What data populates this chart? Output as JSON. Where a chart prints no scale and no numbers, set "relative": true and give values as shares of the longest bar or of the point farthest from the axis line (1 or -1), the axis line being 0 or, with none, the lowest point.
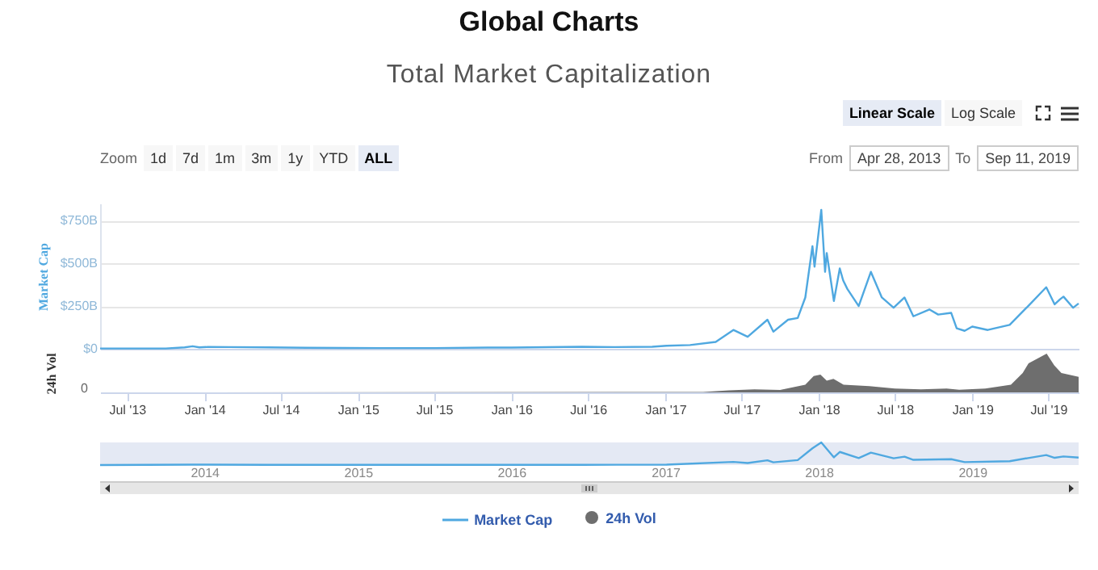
{
  "chart_data": [
    {
      "type": "line",
      "title": "Global Charts",
      "subtitle": "Total Market Capitalization",
      "ylabel": "Market Cap",
      "legend": "bottom",
      "grid": "y",
      "tick_labels": "y",
      "annotations": [
        "Zoom",
        "1d",
        "7d",
        "1m",
        "3m",
        "1y",
        "YTD",
        "ALL",
        "From",
        "Apr 28, 2013",
        "To",
        "Sep 11, 2019",
        "Linear Scale",
        "Log Scale"
      ],
      "xlim": [
        "2013-04-28",
        "2019-09-11"
      ],
      "ylim": [
        0,
        850
      ],
      "yticks": [
        {
          "value": 0,
          "label": "$0"
        },
        {
          "value": 250,
          "label": "$250B"
        },
        {
          "value": 500,
          "label": "$500B"
        },
        {
          "value": 750,
          "label": "$750B"
        }
      ],
      "x": [
        "2013-04-28",
        "2013-10-01",
        "2013-11-15",
        "2013-12-04",
        "2013-12-20",
        "2014-01-10",
        "2014-03-01",
        "2014-06-01",
        "2014-09-01",
        "2014-12-01",
        "2015-03-01",
        "2015-07-01",
        "2015-11-05",
        "2016-01-01",
        "2016-06-17",
        "2016-09-01",
        "2016-12-01",
        "2017-01-04",
        "2017-03-01",
        "2017-05-01",
        "2017-06-12",
        "2017-07-16",
        "2017-09-01",
        "2017-09-15",
        "2017-10-20",
        "2017-11-12",
        "2017-11-30",
        "2017-12-17",
        "2017-12-22",
        "2018-01-07",
        "2018-01-16",
        "2018-01-20",
        "2018-02-06",
        "2018-02-20",
        "2018-02-28",
        "2018-03-10",
        "2018-04-06",
        "2018-05-05",
        "2018-05-31",
        "2018-06-28",
        "2018-07-24",
        "2018-08-14",
        "2018-09-21",
        "2018-10-12",
        "2018-11-12",
        "2018-11-25",
        "2018-12-14",
        "2019-01-01",
        "2019-02-07",
        "2019-03-31",
        "2019-05-14",
        "2019-06-26",
        "2019-07-16",
        "2019-07-29",
        "2019-08-06",
        "2019-08-29",
        "2019-09-11"
      ],
      "series": [
        {
          "name": "Market Cap",
          "color": "#4fa8e0",
          "values": [
            2,
            2,
            8,
            15,
            8,
            11,
            10,
            8,
            6,
            5,
            4,
            4,
            7,
            7,
            12,
            10,
            12,
            18,
            22,
            40,
            110,
            70,
            170,
            100,
            170,
            180,
            300,
            600,
            480,
            813,
            450,
            560,
            280,
            470,
            400,
            350,
            250,
            450,
            300,
            240,
            300,
            190,
            230,
            200,
            210,
            120,
            105,
            130,
            110,
            140,
            250,
            360,
            260,
            290,
            305,
            240,
            265
          ]
        }
      ]
    },
    {
      "type": "area",
      "ylabel": "24h Vol",
      "legend": "bottom",
      "relative": true,
      "annotations": [
        "0"
      ],
      "xlim": [
        "2013-04-28",
        "2019-09-11"
      ],
      "xticks": [
        {
          "value": "2013-07-01",
          "label": "Jul '13"
        },
        {
          "value": "2014-01-01",
          "label": "Jan '14"
        },
        {
          "value": "2014-07-01",
          "label": "Jul '14"
        },
        {
          "value": "2015-01-01",
          "label": "Jan '15"
        },
        {
          "value": "2015-07-01",
          "label": "Jul '15"
        },
        {
          "value": "2016-01-01",
          "label": "Jan '16"
        },
        {
          "value": "2016-07-01",
          "label": "Jul '16"
        },
        {
          "value": "2017-01-01",
          "label": "Jan '17"
        },
        {
          "value": "2017-07-01",
          "label": "Jul '17"
        },
        {
          "value": "2018-01-01",
          "label": "Jan '18"
        },
        {
          "value": "2018-07-01",
          "label": "Jul '18"
        },
        {
          "value": "2019-01-01",
          "label": "Jan '19"
        },
        {
          "value": "2019-07-01",
          "label": "Jul '19"
        }
      ],
      "x": [
        "2013-04-28",
        "2017-04-01",
        "2017-06-01",
        "2017-08-01",
        "2017-10-01",
        "2017-11-30",
        "2017-12-20",
        "2018-01-05",
        "2018-01-20",
        "2018-02-05",
        "2018-03-01",
        "2018-05-01",
        "2018-07-01",
        "2018-09-01",
        "2018-11-01",
        "2018-12-01",
        "2019-02-01",
        "2019-04-03",
        "2019-05-01",
        "2019-05-15",
        "2019-06-27",
        "2019-07-15",
        "2019-08-01",
        "2019-09-11"
      ],
      "series": [
        {
          "name": "24h Vol",
          "color": "#6e6e6e",
          "values": [
            0,
            0.01,
            0.05,
            0.08,
            0.06,
            0.2,
            0.42,
            0.46,
            0.3,
            0.35,
            0.2,
            0.16,
            0.1,
            0.08,
            0.1,
            0.07,
            0.1,
            0.2,
            0.5,
            0.75,
            1,
            0.7,
            0.5,
            0.4
          ]
        }
      ]
    },
    {
      "type": "line",
      "relative": true,
      "tick_labels": "x",
      "xlim": [
        "2013-04-28",
        "2019-09-11"
      ],
      "xticks": [
        {
          "value": "2014-01-01",
          "label": "2014"
        },
        {
          "value": "2015-01-01",
          "label": "2015"
        },
        {
          "value": "2016-01-01",
          "label": "2016"
        },
        {
          "value": "2017-01-01",
          "label": "2017"
        },
        {
          "value": "2018-01-01",
          "label": "2018"
        },
        {
          "value": "2019-01-01",
          "label": "2019"
        }
      ],
      "x": [
        "2013-04-28",
        "2013-12-04",
        "2014-06-01",
        "2015-07-01",
        "2016-06-17",
        "2017-01-04",
        "2017-06-12",
        "2017-07-16",
        "2017-09-01",
        "2017-09-15",
        "2017-11-12",
        "2017-12-17",
        "2018-01-07",
        "2018-02-06",
        "2018-02-20",
        "2018-04-06",
        "2018-05-05",
        "2018-06-28",
        "2018-07-24",
        "2018-08-14",
        "2018-11-12",
        "2018-12-14",
        "2019-03-31",
        "2019-05-14",
        "2019-06-26",
        "2019-07-16",
        "2019-08-06",
        "2019-09-11"
      ],
      "series": [
        {
          "color": "#4fa8e0",
          "values": [
            0,
            0.02,
            0.01,
            0.01,
            0.01,
            0.02,
            0.14,
            0.09,
            0.21,
            0.12,
            0.22,
            0.74,
            1,
            0.34,
            0.58,
            0.31,
            0.55,
            0.3,
            0.37,
            0.23,
            0.26,
            0.13,
            0.17,
            0.31,
            0.44,
            0.32,
            0.38,
            0.33
          ]
        }
      ]
    }
  ]
}
